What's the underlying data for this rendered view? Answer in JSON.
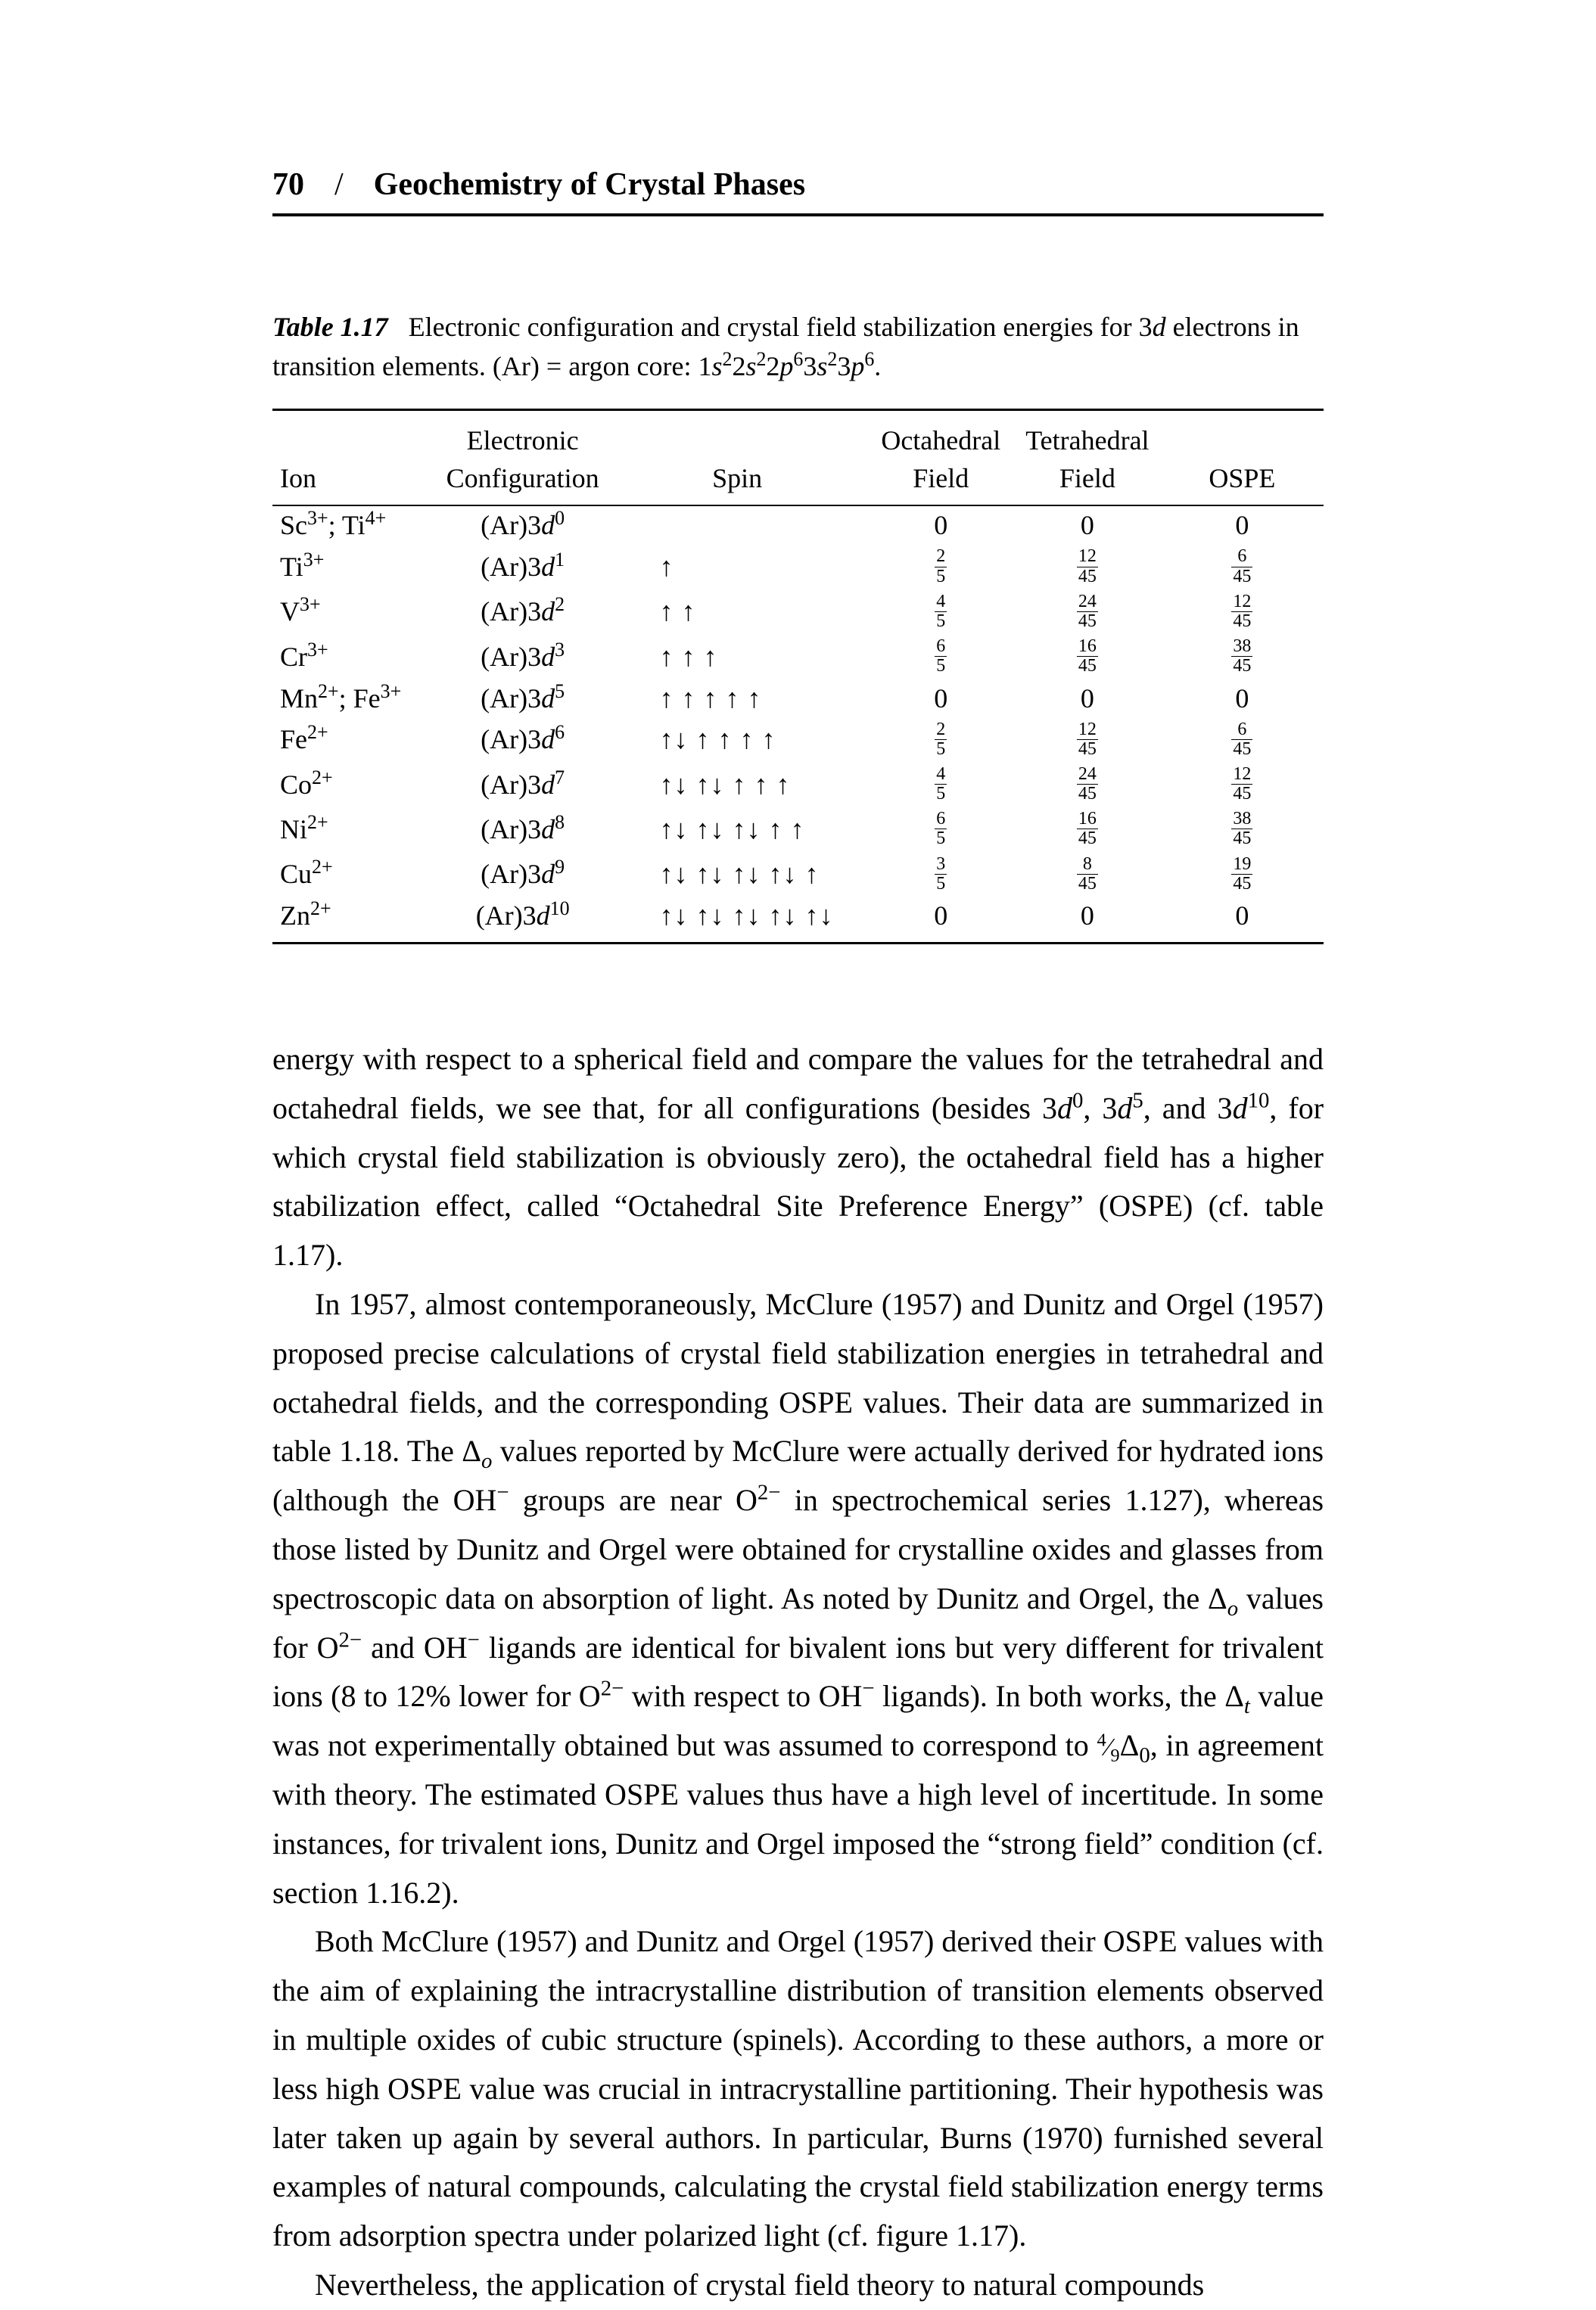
{
  "header": {
    "page_number": "70",
    "slash": "/",
    "title": "Geochemistry of Crystal Phases"
  },
  "table": {
    "caption_label": "Table 1.17",
    "caption_text_html": "Electronic configuration and crystal field stabilization energies for 3<i>d</i> electrons in transition elements. (Ar) = argon core: 1<i>s</i><sup>2</sup>2<i>s</i><sup>2</sup>2<i>p</i><sup>6</sup>3<i>s</i><sup>2</sup>3<i>p</i><sup>6</sup>.",
    "columns": {
      "ion": "Ion",
      "config_top": "Electronic",
      "config_bottom": "Configuration",
      "spin": "Spin",
      "oct_top": "Octahedral",
      "oct_bottom": "Field",
      "tet_top": "Tetrahedral",
      "tet_bottom": "Field",
      "ospe": "OSPE"
    },
    "rows": [
      {
        "ion_html": "Sc<sup>3+</sup>; Ti<sup>4+</sup>",
        "config_html": "(Ar)3<i>d</i><sup>0</sup>",
        "spin": "",
        "oct": {
          "text": "0"
        },
        "tet": {
          "text": "0"
        },
        "ospe": {
          "text": "0"
        }
      },
      {
        "ion_html": "Ti<sup>3+</sup>",
        "config_html": "(Ar)3<i>d</i><sup>1</sup>",
        "spin": "↑",
        "oct": {
          "frac": [
            "2",
            "5"
          ]
        },
        "tet": {
          "frac": [
            "12",
            "45"
          ]
        },
        "ospe": {
          "frac": [
            "6",
            "45"
          ]
        }
      },
      {
        "ion_html": "V<sup>3+</sup>",
        "config_html": "(Ar)3<i>d</i><sup>2</sup>",
        "spin": "↑ ↑",
        "oct": {
          "frac": [
            "4",
            "5"
          ]
        },
        "tet": {
          "frac": [
            "24",
            "45"
          ]
        },
        "ospe": {
          "frac": [
            "12",
            "45"
          ]
        }
      },
      {
        "ion_html": "Cr<sup>3+</sup>",
        "config_html": "(Ar)3<i>d</i><sup>3</sup>",
        "spin": "↑ ↑ ↑",
        "oct": {
          "frac": [
            "6",
            "5"
          ]
        },
        "tet": {
          "frac": [
            "16",
            "45"
          ]
        },
        "ospe": {
          "frac": [
            "38",
            "45"
          ]
        }
      },
      {
        "ion_html": "Mn<sup>2+</sup>; Fe<sup>3+</sup>",
        "config_html": "(Ar)3<i>d</i><sup>5</sup>",
        "spin": "↑ ↑ ↑ ↑ ↑",
        "oct": {
          "text": "0"
        },
        "tet": {
          "text": "0"
        },
        "ospe": {
          "text": "0"
        }
      },
      {
        "ion_html": "Fe<sup>2+</sup>",
        "config_html": "(Ar)3<i>d</i><sup>6</sup>",
        "spin": "↑↓  ↑ ↑ ↑ ↑",
        "oct": {
          "frac": [
            "2",
            "5"
          ]
        },
        "tet": {
          "frac": [
            "12",
            "45"
          ]
        },
        "ospe": {
          "frac": [
            "6",
            "45"
          ]
        }
      },
      {
        "ion_html": "Co<sup>2+</sup>",
        "config_html": "(Ar)3<i>d</i><sup>7</sup>",
        "spin": "↑↓ ↑↓ ↑ ↑ ↑",
        "oct": {
          "frac": [
            "4",
            "5"
          ]
        },
        "tet": {
          "frac": [
            "24",
            "45"
          ]
        },
        "ospe": {
          "frac": [
            "12",
            "45"
          ]
        }
      },
      {
        "ion_html": "Ni<sup>2+</sup>",
        "config_html": "(Ar)3<i>d</i><sup>8</sup>",
        "spin": "↑↓ ↑↓ ↑↓ ↑ ↑",
        "oct": {
          "frac": [
            "6",
            "5"
          ]
        },
        "tet": {
          "frac": [
            "16",
            "45"
          ]
        },
        "ospe": {
          "frac": [
            "38",
            "45"
          ]
        }
      },
      {
        "ion_html": "Cu<sup>2+</sup>",
        "config_html": "(Ar)3<i>d</i><sup>9</sup>",
        "spin": "↑↓ ↑↓ ↑↓ ↑↓ ↑",
        "oct": {
          "frac": [
            "3",
            "5"
          ]
        },
        "tet": {
          "frac": [
            "8",
            "45"
          ]
        },
        "ospe": {
          "frac": [
            "19",
            "45"
          ]
        }
      },
      {
        "ion_html": "Zn<sup>2+</sup>",
        "config_html": "(Ar)3<i>d</i><sup>10</sup>",
        "spin": "↑↓ ↑↓ ↑↓ ↑↓ ↑↓",
        "oct": {
          "text": "0"
        },
        "tet": {
          "text": "0"
        },
        "ospe": {
          "text": "0"
        }
      }
    ],
    "col_widths": [
      "16%",
      "15%",
      "25%",
      "14%",
      "14%",
      "16%"
    ]
  },
  "paragraphs": [
    "energy with respect to a spherical field and compare the values for the tetrahedral and octahedral fields, we see that, for all configurations (besides 3<i>d</i><sup>0</sup>, 3<i>d</i><sup>5</sup>, and 3<i>d</i><sup>10</sup>, for which crystal field stabilization is obviously zero), the octahedral field has a higher stabilization effect, called “Octahedral Site Preference Energy” (OSPE) (cf. table 1.17).",
    "In 1957, almost contemporaneously, McClure (1957) and Dunitz and Orgel (1957) proposed precise calculations of crystal field stabilization energies in tetrahedral and octahedral fields, and the corresponding OSPE values. Their data are summarized in table 1.18. The Δ<sub><i>o</i></sub> values reported by McClure were actually derived for hydrated ions (although the OH<sup>−</sup> groups are near O<sup>2−</sup> in spectrochemical series 1.127), whereas those listed by Dunitz and Orgel were obtained for crystalline oxides and glasses from spectroscopic data on absorption of light. As noted by Dunitz and Orgel, the Δ<sub><i>o</i></sub> values for O<sup>2−</sup> and OH<sup>−</sup> ligands are identical for bivalent ions but very different for trivalent ions (8 to 12% lower for O<sup>2−</sup> with respect to OH<sup>−</sup> ligands). In both works, the Δ<sub><i>t</i></sub> value was not experimentally obtained but was assumed to correspond to <span style='font-size:0.85em'><sup>4</sup>⁄<sub>9</sub></span>Δ<sub>0</sub>, in agreement with theory. The estimated OSPE values thus have a high level of incertitude. In some instances, for trivalent ions, Dunitz and Orgel imposed the “strong field” condition (cf. section 1.16.2).",
    "Both McClure (1957) and Dunitz and Orgel (1957) derived their OSPE values with the aim of explaining the intracrystalline distribution of transition elements observed in multiple oxides of cubic structure (spinels). According to these authors, a more or less high OSPE value was crucial in intracrystalline partitioning. Their hypothesis was later taken up again by several authors. In particular, Burns (1970) furnished several examples of natural compounds, calculating the crystal field stabilization energy terms from adsorption spectra under polarized light (cf. figure 1.17).",
    "Nevertheless, the application of crystal field theory to natural compounds"
  ]
}
